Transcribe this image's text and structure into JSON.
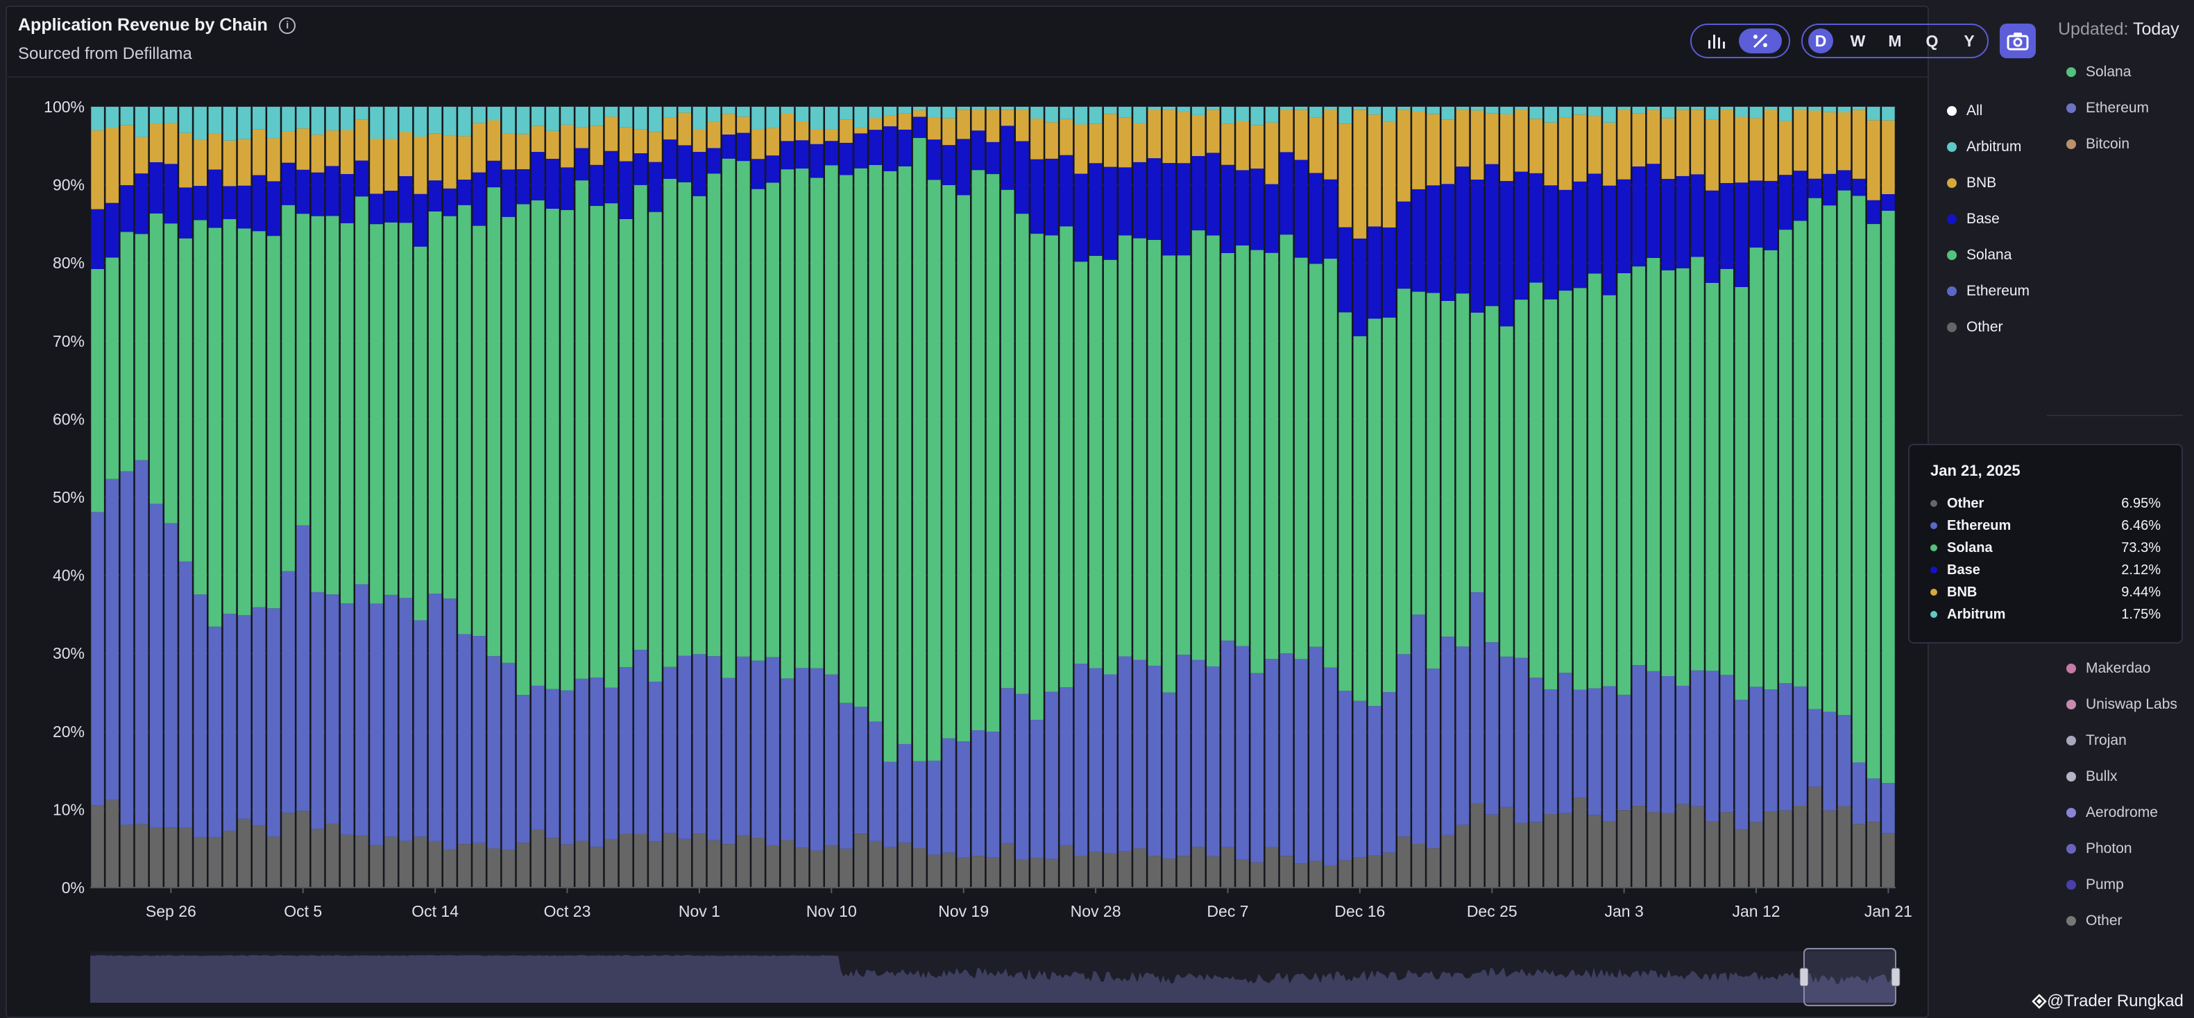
{
  "header": {
    "title": "Application Revenue by Chain",
    "subtitle": "Sourced from Defillama",
    "info_icon": "info-circle-icon",
    "view_toggle": [
      {
        "icon": "bar-chart-icon",
        "active": false
      },
      {
        "icon": "percent-icon",
        "active": true
      }
    ],
    "periods": [
      {
        "label": "D",
        "active": true
      },
      {
        "label": "W",
        "active": false
      },
      {
        "label": "M",
        "active": false
      },
      {
        "label": "Q",
        "active": false
      },
      {
        "label": "Y",
        "active": false
      }
    ],
    "camera_icon": "camera-icon"
  },
  "legend": [
    {
      "label": "All",
      "color": "#ffffff"
    },
    {
      "label": "Arbitrum",
      "color": "#5fc8c8"
    },
    {
      "label": "BNB",
      "color": "#d6a83c"
    },
    {
      "label": "Base",
      "color": "#1212c8"
    },
    {
      "label": "Solana",
      "color": "#52c27e"
    },
    {
      "label": "Ethereum",
      "color": "#5b68c4"
    },
    {
      "label": "Other",
      "color": "#666666"
    }
  ],
  "tooltip": {
    "date": "Jan 21, 2025",
    "rows": [
      {
        "name": "Other",
        "value": "6.95%",
        "color": "#666666"
      },
      {
        "name": "Ethereum",
        "value": "6.46%",
        "color": "#5b68c4"
      },
      {
        "name": "Solana",
        "value": "73.3%",
        "color": "#52c27e"
      },
      {
        "name": "Base",
        "value": "2.12%",
        "color": "#1212c8"
      },
      {
        "name": "BNB",
        "value": "9.44%",
        "color": "#d6a83c"
      },
      {
        "name": "Arbitrum",
        "value": "1.75%",
        "color": "#5fc8c8"
      }
    ]
  },
  "side_panel": {
    "updated_label": "Updated:",
    "updated_value": "Today",
    "top_items": [
      {
        "label": "Solana",
        "color": "#52c27e"
      },
      {
        "label": "Ethereum",
        "color": "#6b74c4"
      },
      {
        "label": "Bitcoin",
        "color": "#b9926b"
      }
    ],
    "bottom_items": [
      {
        "label": "Makerdao",
        "color": "#c77aa8"
      },
      {
        "label": "Uniswap Labs",
        "color": "#c98ab0"
      },
      {
        "label": "Trojan",
        "color": "#a8a8bc"
      },
      {
        "label": "Bullx",
        "color": "#b4b4c4"
      },
      {
        "label": "Aerodrome",
        "color": "#8a84d8"
      },
      {
        "label": "Photon",
        "color": "#6a64c0"
      },
      {
        "label": "Pump",
        "color": "#4a3eb0"
      },
      {
        "label": "Other",
        "color": "#777777"
      }
    ],
    "credit": "@Trader Rungkad"
  },
  "chart_data": {
    "type": "bar",
    "stacked": true,
    "normalized": true,
    "title": "Application Revenue by Chain",
    "subtitle": "Sourced from Defillama",
    "y_ticks": [
      "0%",
      "10%",
      "20%",
      "30%",
      "40%",
      "50%",
      "60%",
      "70%",
      "80%",
      "90%",
      "100%"
    ],
    "ylim": [
      0,
      100
    ],
    "x_ticks": [
      "Sep 26",
      "Oct 5",
      "Oct 14",
      "Oct 23",
      "Nov 1",
      "Nov 10",
      "Nov 19",
      "Nov 28",
      "Dec 7",
      "Dec 16",
      "Dec 25",
      "Jan 3",
      "Jan 12",
      "Jan 21"
    ],
    "x_start": "Sep 21, 2024",
    "x_end": "Jan 21, 2025",
    "series_order": [
      "Other",
      "Ethereum",
      "Solana",
      "Base",
      "BNB",
      "Arbitrum"
    ],
    "colors": {
      "Other": "#666666",
      "Ethereum": "#5b68c4",
      "Solana": "#52c27e",
      "Base": "#1212c8",
      "BNB": "#d6a83c",
      "Arbitrum": "#5fc8c8"
    },
    "keyframes": [
      {
        "day": 0,
        "Other": 11,
        "Ethereum": 36,
        "Solana": 31,
        "Base": 8,
        "BNB": 10,
        "Arbitrum": 4
      },
      {
        "day": 3,
        "Other": 8,
        "Ethereum": 47,
        "Solana": 30,
        "Base": 6,
        "BNB": 6,
        "Arbitrum": 3
      },
      {
        "day": 5,
        "Other": 8,
        "Ethereum": 38,
        "Solana": 39,
        "Base": 6,
        "BNB": 6,
        "Arbitrum": 3
      },
      {
        "day": 8,
        "Other": 7,
        "Ethereum": 27,
        "Solana": 51,
        "Base": 6,
        "BNB": 6,
        "Arbitrum": 3
      },
      {
        "day": 14,
        "Other": 8,
        "Ethereum": 31,
        "Solana": 46,
        "Base": 7,
        "BNB": 5,
        "Arbitrum": 3
      },
      {
        "day": 19,
        "Other": 6,
        "Ethereum": 30,
        "Solana": 49,
        "Base": 6,
        "BNB": 6,
        "Arbitrum": 3
      },
      {
        "day": 24,
        "Other": 6,
        "Ethereum": 30,
        "Solana": 50,
        "Base": 5,
        "BNB": 6,
        "Arbitrum": 3
      },
      {
        "day": 30,
        "Other": 6,
        "Ethereum": 19,
        "Solana": 64,
        "Base": 5,
        "BNB": 4,
        "Arbitrum": 2
      },
      {
        "day": 36,
        "Other": 6,
        "Ethereum": 22,
        "Solana": 60,
        "Base": 6,
        "BNB": 4,
        "Arbitrum": 2
      },
      {
        "day": 42,
        "Other": 6,
        "Ethereum": 22,
        "Solana": 62,
        "Base": 5,
        "BNB": 3,
        "Arbitrum": 2
      },
      {
        "day": 48,
        "Other": 6,
        "Ethereum": 23,
        "Solana": 62,
        "Base": 4,
        "BNB": 3,
        "Arbitrum": 2
      },
      {
        "day": 52,
        "Other": 6,
        "Ethereum": 17,
        "Solana": 69,
        "Base": 4,
        "BNB": 2,
        "Arbitrum": 2
      },
      {
        "day": 55,
        "Other": 5,
        "Ethereum": 11,
        "Solana": 77,
        "Base": 4,
        "BNB": 2,
        "Arbitrum": 1
      },
      {
        "day": 61,
        "Other": 5,
        "Ethereum": 17,
        "Solana": 68,
        "Base": 6,
        "BNB": 3,
        "Arbitrum": 1
      },
      {
        "day": 68,
        "Other": 5,
        "Ethereum": 24,
        "Solana": 53,
        "Base": 11,
        "BNB": 6,
        "Arbitrum": 1
      },
      {
        "day": 75,
        "Other": 5,
        "Ethereum": 25,
        "Solana": 53,
        "Base": 10,
        "BNB": 6,
        "Arbitrum": 1
      },
      {
        "day": 83,
        "Other": 4,
        "Ethereum": 26,
        "Solana": 51,
        "Base": 11,
        "BNB": 7,
        "Arbitrum": 1
      },
      {
        "day": 86,
        "Other": 4,
        "Ethereum": 20,
        "Solana": 48,
        "Base": 11,
        "BNB": 16,
        "Arbitrum": 1
      },
      {
        "day": 91,
        "Other": 6,
        "Ethereum": 24,
        "Solana": 46,
        "Base": 14,
        "BNB": 9,
        "Arbitrum": 1
      },
      {
        "day": 95,
        "Other": 9,
        "Ethereum": 21,
        "Solana": 44,
        "Base": 17,
        "BNB": 8,
        "Arbitrum": 1
      },
      {
        "day": 101,
        "Other": 10,
        "Ethereum": 16,
        "Solana": 51,
        "Base": 14,
        "BNB": 8,
        "Arbitrum": 1
      },
      {
        "day": 106,
        "Other": 10,
        "Ethereum": 17,
        "Solana": 52,
        "Base": 12,
        "BNB": 8,
        "Arbitrum": 1
      },
      {
        "day": 112,
        "Other": 9,
        "Ethereum": 17,
        "Solana": 53,
        "Base": 12,
        "BNB": 8,
        "Arbitrum": 1
      },
      {
        "day": 117,
        "Other": 11,
        "Ethereum": 12,
        "Solana": 64,
        "Base": 4,
        "BNB": 8,
        "Arbitrum": 1
      },
      {
        "day": 122,
        "Other": 6.95,
        "Ethereum": 6.46,
        "Solana": 73.3,
        "Base": 2.12,
        "BNB": 9.44,
        "Arbitrum": 1.75
      }
    ],
    "spikes": [
      {
        "day": 14,
        "Solana": 36
      },
      {
        "day": 73,
        "Ethereum": 21
      },
      {
        "day": 90,
        "Ethereum": 34
      },
      {
        "day": 94,
        "Solana": 30
      }
    ]
  }
}
